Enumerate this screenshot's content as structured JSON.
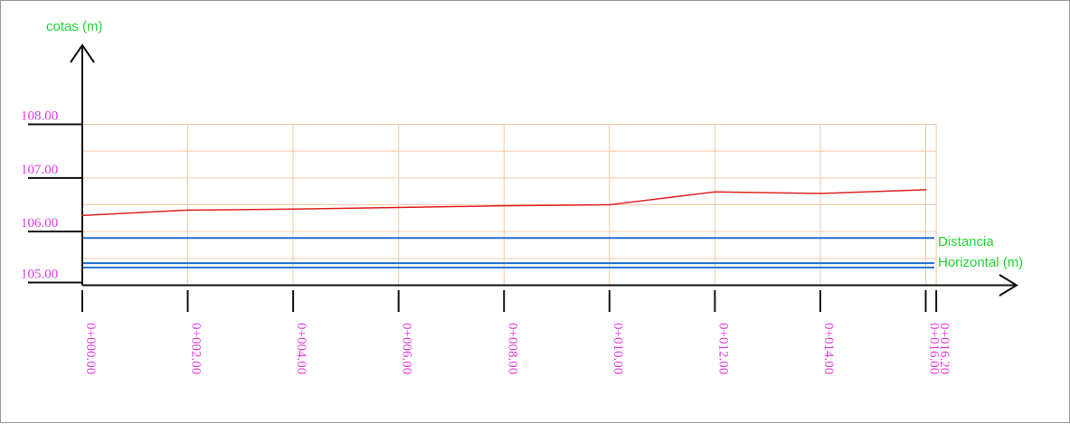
{
  "chart_data": {
    "type": "line",
    "ylabel": "cotas (m)",
    "xlabel_lines": [
      "Distancia",
      "Horizontal (m)"
    ],
    "x_ticks": [
      "0+000.00",
      "0+002.00",
      "0+004.00",
      "0+006.00",
      "0+008.00",
      "0+010.00",
      "0+012.00",
      "0+014.00",
      "0+016.00",
      "0+016.20"
    ],
    "x_tick_values": [
      0,
      2,
      4,
      6,
      8,
      10,
      12,
      14,
      16,
      16.2
    ],
    "y_ticks": [
      "105.00",
      "106.00",
      "107.00",
      "108.00"
    ],
    "y_tick_values": [
      105,
      106,
      107,
      108
    ],
    "xlim": [
      0,
      16.2
    ],
    "ylim": [
      105,
      108
    ],
    "grid": true,
    "series": [
      {
        "x": [
          0,
          2,
          4,
          6,
          8,
          10,
          12,
          14,
          16
        ],
        "values": [
          106.3,
          106.4,
          106.42,
          106.45,
          106.48,
          106.5,
          106.74,
          106.71,
          106.78
        ],
        "color": "#e02020"
      }
    ],
    "reference_lines": [
      {
        "y": 105.88,
        "color": "#1e6fd0"
      },
      {
        "y": 105.41,
        "color": "#1e6fd0"
      },
      {
        "y": 105.33,
        "color": "#1e6fd0"
      }
    ],
    "colors": {
      "axis": "#111111",
      "grid": "#f5c9a6",
      "axis_label": "#22d632",
      "tick_label": "#e23ae6"
    }
  }
}
